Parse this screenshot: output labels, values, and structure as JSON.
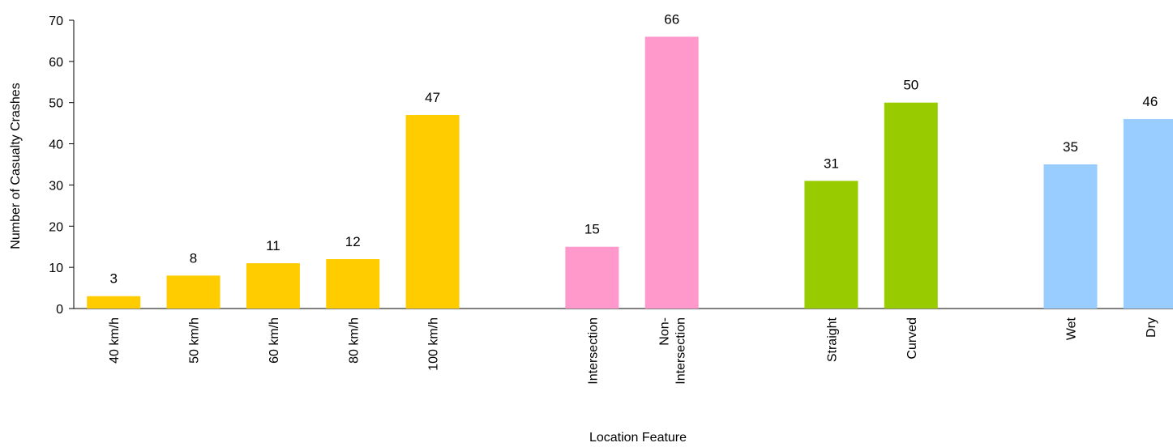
{
  "chart_data": {
    "type": "bar",
    "xlabel": "Location Feature",
    "ylabel": "Number of Casualty Crashes",
    "ylim": [
      0,
      70
    ],
    "yticks": [
      0,
      10,
      20,
      30,
      40,
      50,
      60,
      70
    ],
    "grid": false,
    "legend": "none",
    "groups": [
      {
        "color": "#FFCC00",
        "categories": [
          {
            "lines": [
              "40 km/h"
            ],
            "value": 3
          },
          {
            "lines": [
              "50 km/h"
            ],
            "value": 8
          },
          {
            "lines": [
              "60 km/h"
            ],
            "value": 11
          },
          {
            "lines": [
              "80 km/h"
            ],
            "value": 12
          },
          {
            "lines": [
              "100 km/h"
            ],
            "value": 47
          }
        ]
      },
      {
        "color": "#FF99CC",
        "categories": [
          {
            "lines": [
              "Intersection"
            ],
            "value": 15
          },
          {
            "lines": [
              "Non-",
              "Intersection"
            ],
            "value": 66
          }
        ]
      },
      {
        "color": "#99CC00",
        "categories": [
          {
            "lines": [
              "Straight"
            ],
            "value": 31
          },
          {
            "lines": [
              "Curved"
            ],
            "value": 50
          }
        ]
      },
      {
        "color": "#99CCFF",
        "categories": [
          {
            "lines": [
              "Wet"
            ],
            "value": 35
          },
          {
            "lines": [
              "Dry"
            ],
            "value": 46
          }
        ]
      }
    ]
  }
}
